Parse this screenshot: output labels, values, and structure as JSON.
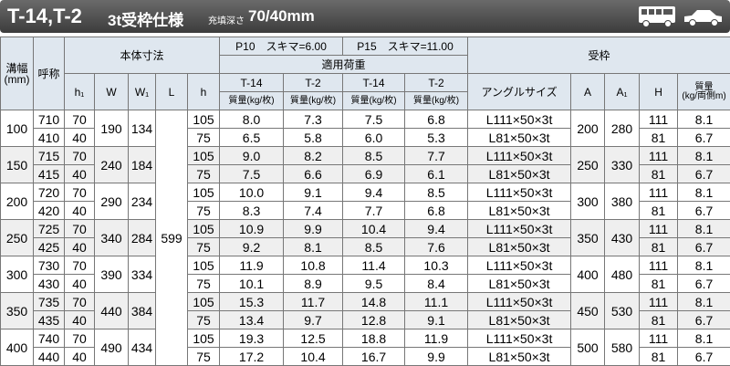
{
  "header": {
    "title": "T-14,T-2",
    "subtitle": "3t受枠仕様",
    "depth_label": "充填深さ",
    "depth_value": "70/40mm"
  },
  "table": {
    "columns": {
      "groove_width": "溝幅",
      "groove_unit": "(mm)",
      "name": "呼称",
      "body_dims": "本体寸法",
      "h1": "h₁",
      "W": "W",
      "W1": "W₁",
      "L": "L",
      "h": "h",
      "p10": "P10　スキマ=6.00",
      "p15": "P15　スキマ=11.00",
      "load": "適用荷重",
      "loads": [
        "T-14",
        "T-2",
        "T-14",
        "T-2"
      ],
      "mass_per_sheet": "質量(kg/枚)",
      "frame": "受枠",
      "angle": "アングルサイズ",
      "A": "A",
      "A1": "A₁",
      "H": "H",
      "frame_mass": "質量",
      "frame_mass_unit": "(kg/両側m)"
    },
    "L": "599",
    "groups": [
      {
        "width": "100",
        "W": "190",
        "W1": "134",
        "A": "200",
        "A1": "280",
        "rows": [
          {
            "name": "710",
            "h1": "70",
            "h": "105",
            "loads": [
              "8.0",
              "7.3",
              "7.5",
              "6.8"
            ],
            "angle": "L111×50×3t",
            "H": "111",
            "mass": "8.1"
          },
          {
            "name": "410",
            "h1": "40",
            "h": "75",
            "loads": [
              "6.5",
              "5.8",
              "6.0",
              "5.3"
            ],
            "angle": "L81×50×3t",
            "H": "81",
            "mass": "6.7"
          }
        ]
      },
      {
        "width": "150",
        "W": "240",
        "W1": "184",
        "A": "250",
        "A1": "330",
        "rows": [
          {
            "name": "715",
            "h1": "70",
            "h": "105",
            "loads": [
              "9.0",
              "8.2",
              "8.5",
              "7.7"
            ],
            "angle": "L111×50×3t",
            "H": "111",
            "mass": "8.1"
          },
          {
            "name": "415",
            "h1": "40",
            "h": "75",
            "loads": [
              "7.5",
              "6.6",
              "6.9",
              "6.1"
            ],
            "angle": "L81×50×3t",
            "H": "81",
            "mass": "6.7"
          }
        ]
      },
      {
        "width": "200",
        "W": "290",
        "W1": "234",
        "A": "300",
        "A1": "380",
        "rows": [
          {
            "name": "720",
            "h1": "70",
            "h": "105",
            "loads": [
              "10.0",
              "9.1",
              "9.4",
              "8.5"
            ],
            "angle": "L111×50×3t",
            "H": "111",
            "mass": "8.1"
          },
          {
            "name": "420",
            "h1": "40",
            "h": "75",
            "loads": [
              "8.3",
              "7.4",
              "7.7",
              "6.8"
            ],
            "angle": "L81×50×3t",
            "H": "81",
            "mass": "6.7"
          }
        ]
      },
      {
        "width": "250",
        "W": "340",
        "W1": "284",
        "A": "350",
        "A1": "430",
        "rows": [
          {
            "name": "725",
            "h1": "70",
            "h": "105",
            "loads": [
              "10.9",
              "9.9",
              "10.4",
              "9.4"
            ],
            "angle": "L111×50×3t",
            "H": "111",
            "mass": "8.1"
          },
          {
            "name": "425",
            "h1": "40",
            "h": "75",
            "loads": [
              "9.2",
              "8.1",
              "8.5",
              "7.6"
            ],
            "angle": "L81×50×3t",
            "H": "81",
            "mass": "6.7"
          }
        ]
      },
      {
        "width": "300",
        "W": "390",
        "W1": "334",
        "A": "400",
        "A1": "480",
        "rows": [
          {
            "name": "730",
            "h1": "70",
            "h": "105",
            "loads": [
              "11.9",
              "10.8",
              "11.4",
              "10.3"
            ],
            "angle": "L111×50×3t",
            "H": "111",
            "mass": "8.1"
          },
          {
            "name": "430",
            "h1": "40",
            "h": "75",
            "loads": [
              "10.1",
              "8.9",
              "9.5",
              "8.4"
            ],
            "angle": "L81×50×3t",
            "H": "81",
            "mass": "6.7"
          }
        ]
      },
      {
        "width": "350",
        "W": "440",
        "W1": "384",
        "A": "450",
        "A1": "530",
        "rows": [
          {
            "name": "735",
            "h1": "70",
            "h": "105",
            "loads": [
              "15.3",
              "11.7",
              "14.8",
              "11.1"
            ],
            "angle": "L111×50×3t",
            "H": "111",
            "mass": "8.1"
          },
          {
            "name": "435",
            "h1": "40",
            "h": "75",
            "loads": [
              "13.4",
              "9.7",
              "12.8",
              "9.1"
            ],
            "angle": "L81×50×3t",
            "H": "81",
            "mass": "6.7"
          }
        ]
      },
      {
        "width": "400",
        "W": "490",
        "W1": "434",
        "A": "500",
        "A1": "580",
        "rows": [
          {
            "name": "740",
            "h1": "70",
            "h": "105",
            "loads": [
              "19.3",
              "12.5",
              "18.8",
              "11.9"
            ],
            "angle": "L111×50×3t",
            "H": "111",
            "mass": "8.1"
          },
          {
            "name": "440",
            "h1": "40",
            "h": "75",
            "loads": [
              "17.2",
              "10.4",
              "16.7",
              "9.9"
            ],
            "angle": "L81×50×3t",
            "H": "81",
            "mass": "6.7"
          }
        ]
      }
    ]
  }
}
